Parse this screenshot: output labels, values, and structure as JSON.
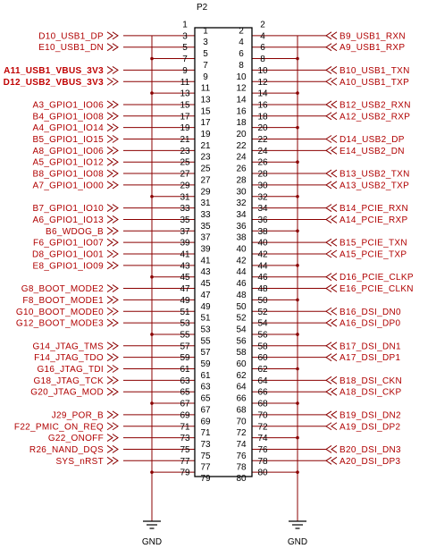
{
  "connector": {
    "refdes": "P2",
    "gnd_labels": [
      "GND",
      "GND"
    ]
  },
  "left_nets": [
    {
      "pin": 3,
      "label": "D10_USB1_DP"
    },
    {
      "pin": 5,
      "label": "E10_USB1_DN"
    },
    {
      "pin": 9,
      "label": "A11_USB1_VBUS_3V3",
      "bold": true
    },
    {
      "pin": 11,
      "label": "D12_USB2_VBUS_3V3",
      "bold": true
    },
    {
      "pin": 15,
      "label": "A3_GPIO1_IO06"
    },
    {
      "pin": 17,
      "label": "B4_GPIO1_IO08"
    },
    {
      "pin": 19,
      "label": "A4_GPIO1_IO14"
    },
    {
      "pin": 21,
      "label": "B5_GPIO1_IO15"
    },
    {
      "pin": 23,
      "label": "A8_GPIO1_IO06"
    },
    {
      "pin": 25,
      "label": "A5_GPIO1_IO12"
    },
    {
      "pin": 27,
      "label": "B8_GPIO1_IO08"
    },
    {
      "pin": 29,
      "label": "A7_GPIO1_IO00"
    },
    {
      "pin": 33,
      "label": "B7_GPIO1_IO10"
    },
    {
      "pin": 35,
      "label": "A6_GPIO1_IO13"
    },
    {
      "pin": 37,
      "label": "B6_WDOG_B"
    },
    {
      "pin": 39,
      "label": "F6_GPIO1_IO07"
    },
    {
      "pin": 41,
      "label": "D8_GPIO1_IO01"
    },
    {
      "pin": 43,
      "label": "E8_GPIO1_IO09"
    },
    {
      "pin": 47,
      "label": "G8_BOOT_MODE2"
    },
    {
      "pin": 49,
      "label": "F8_BOOT_MODE1"
    },
    {
      "pin": 51,
      "label": "G10_BOOT_MODE0"
    },
    {
      "pin": 53,
      "label": "G12_BOOT_MODE3"
    },
    {
      "pin": 57,
      "label": "G14_JTAG_TMS"
    },
    {
      "pin": 59,
      "label": "F14_JTAG_TDO"
    },
    {
      "pin": 61,
      "label": "G16_JTAG_TDI"
    },
    {
      "pin": 63,
      "label": "G18_JTAG_TCK"
    },
    {
      "pin": 65,
      "label": "G20_JTAG_MOD"
    },
    {
      "pin": 69,
      "label": "J29_POR_B"
    },
    {
      "pin": 71,
      "label": "F22_PMIC_ON_REQ"
    },
    {
      "pin": 73,
      "label": "G22_ONOFF"
    },
    {
      "pin": 75,
      "label": "R26_NAND_DQS"
    },
    {
      "pin": 77,
      "label": "SYS_nRST"
    }
  ],
  "right_nets": [
    {
      "pin": 4,
      "label": "B9_USB1_RXN"
    },
    {
      "pin": 6,
      "label": "A9_USB1_RXP"
    },
    {
      "pin": 10,
      "label": "B10_USB1_TXN"
    },
    {
      "pin": 12,
      "label": "A10_USB1_TXP"
    },
    {
      "pin": 16,
      "label": "B12_USB2_RXN"
    },
    {
      "pin": 18,
      "label": "A12_USB2_RXP"
    },
    {
      "pin": 22,
      "label": "D14_USB2_DP"
    },
    {
      "pin": 24,
      "label": "E14_USB2_DN"
    },
    {
      "pin": 28,
      "label": "B13_USB2_TXN"
    },
    {
      "pin": 30,
      "label": "A13_USB2_TXP"
    },
    {
      "pin": 34,
      "label": "B14_PCIE_RXN"
    },
    {
      "pin": 36,
      "label": "A14_PCIE_RXP"
    },
    {
      "pin": 40,
      "label": "B15_PCIE_TXN"
    },
    {
      "pin": 42,
      "label": "A15_PCIE_TXP"
    },
    {
      "pin": 46,
      "label": "D16_PCIE_CLKP"
    },
    {
      "pin": 48,
      "label": "E16_PCIE_CLKN"
    },
    {
      "pin": 52,
      "label": "B16_DSI_DN0"
    },
    {
      "pin": 54,
      "label": "A16_DSI_DP0"
    },
    {
      "pin": 58,
      "label": "B17_DSI_DN1"
    },
    {
      "pin": 60,
      "label": "A17_DSI_DP1"
    },
    {
      "pin": 64,
      "label": "B18_DSI_CKN"
    },
    {
      "pin": 66,
      "label": "A18_DSI_CKP"
    },
    {
      "pin": 70,
      "label": "B19_DSI_DN2"
    },
    {
      "pin": 72,
      "label": "A19_DSI_DP2"
    },
    {
      "pin": 76,
      "label": "B20_DSI_DN3"
    },
    {
      "pin": 78,
      "label": "A20_DSI_DP3"
    }
  ],
  "colors": {
    "wire": "#8b0000",
    "label": "#b00000",
    "outline": "#000000"
  }
}
